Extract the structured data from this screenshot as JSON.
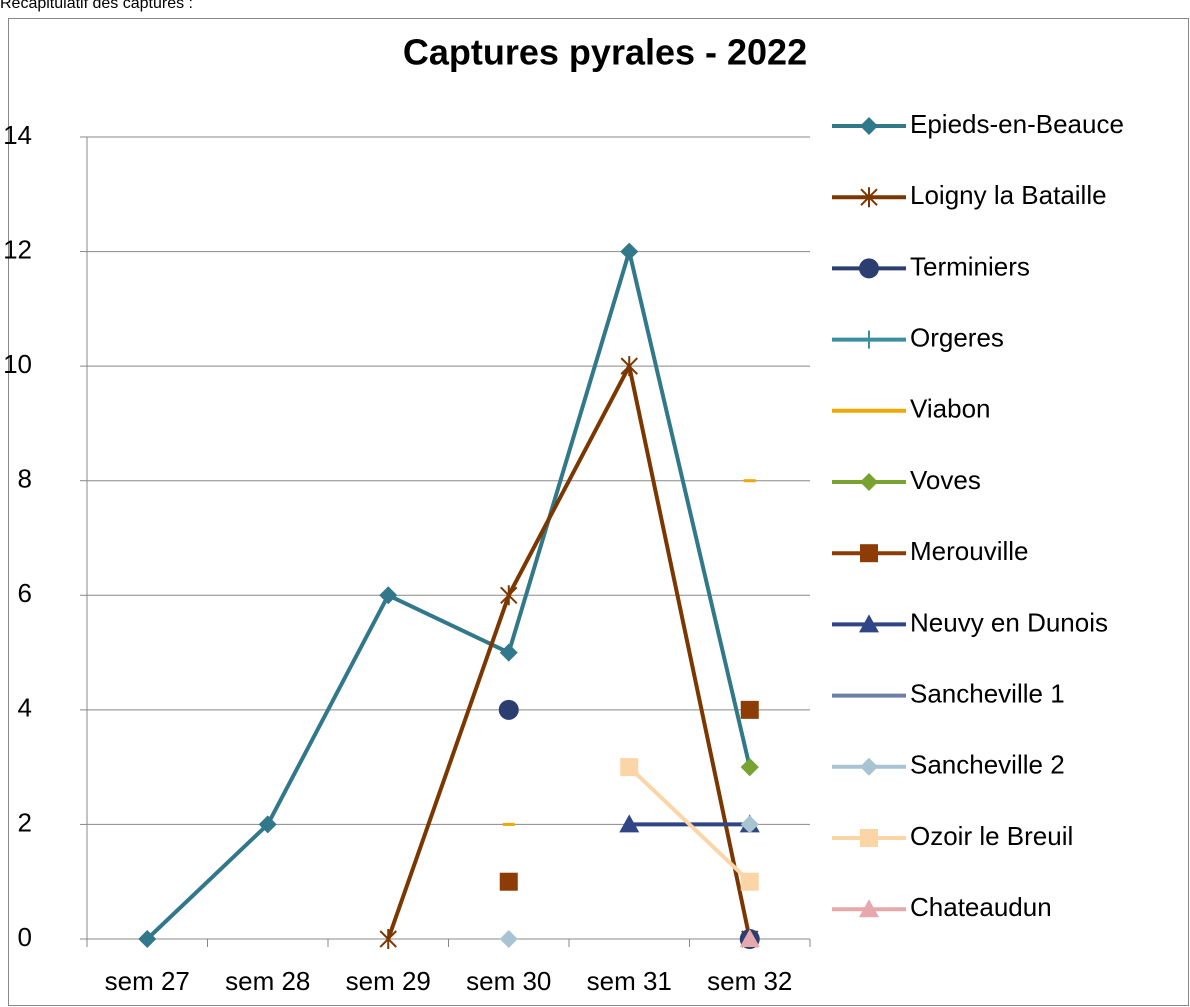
{
  "caption": "Récapitulatif des captures :",
  "chart_data": {
    "type": "line",
    "title": "Captures pyrales - 2022",
    "categories": [
      "sem 27",
      "sem 28",
      "sem 29",
      "sem 30",
      "sem 31",
      "sem 32"
    ],
    "ylim": [
      0,
      14
    ],
    "yticks": [
      0,
      2,
      4,
      6,
      8,
      10,
      12,
      14
    ],
    "grid": true,
    "legend": "right",
    "series": [
      {
        "name": "Epieds-en-Beauce",
        "color": "#31788a",
        "marker": "diamond",
        "values": [
          0,
          2,
          6,
          5,
          12,
          3
        ]
      },
      {
        "name": "Loigny la Bataille",
        "color": "#7b3700",
        "marker": "star",
        "values": [
          null,
          null,
          0,
          6,
          10,
          0
        ]
      },
      {
        "name": "Terminiers",
        "color": "#2c3e70",
        "marker": "circle",
        "values": [
          null,
          null,
          null,
          4,
          null,
          0
        ]
      },
      {
        "name": "Orgeres",
        "color": "#3a8fa0",
        "marker": "plus",
        "values": [
          null,
          null,
          null,
          null,
          null,
          null
        ]
      },
      {
        "name": "Viabon",
        "color": "#f0a800",
        "marker": "dash",
        "values": [
          null,
          null,
          null,
          2,
          null,
          8
        ]
      },
      {
        "name": "Voves",
        "color": "#7aa230",
        "marker": "diamond",
        "values": [
          null,
          null,
          null,
          null,
          null,
          3
        ]
      },
      {
        "name": "Merouville",
        "color": "#8c3c04",
        "marker": "square",
        "values": [
          null,
          null,
          null,
          1,
          null,
          4
        ]
      },
      {
        "name": "Neuvy en Dunois",
        "color": "#2f4585",
        "marker": "triangle",
        "values": [
          null,
          null,
          null,
          null,
          2,
          2
        ]
      },
      {
        "name": "Sancheville 1",
        "color": "#6d7fa8",
        "marker": "none",
        "values": [
          null,
          null,
          null,
          null,
          null,
          null
        ]
      },
      {
        "name": "Sancheville 2",
        "color": "#a8c4d2",
        "marker": "diamond",
        "values": [
          null,
          null,
          null,
          0,
          null,
          2
        ]
      },
      {
        "name": "Ozoir le Breuil",
        "color": "#fcd5a6",
        "marker": "square",
        "values": [
          null,
          null,
          null,
          null,
          3,
          1
        ]
      },
      {
        "name": "Chateaudun",
        "color": "#e6a8ac",
        "marker": "triangle",
        "values": [
          null,
          null,
          null,
          null,
          null,
          0
        ]
      }
    ]
  }
}
